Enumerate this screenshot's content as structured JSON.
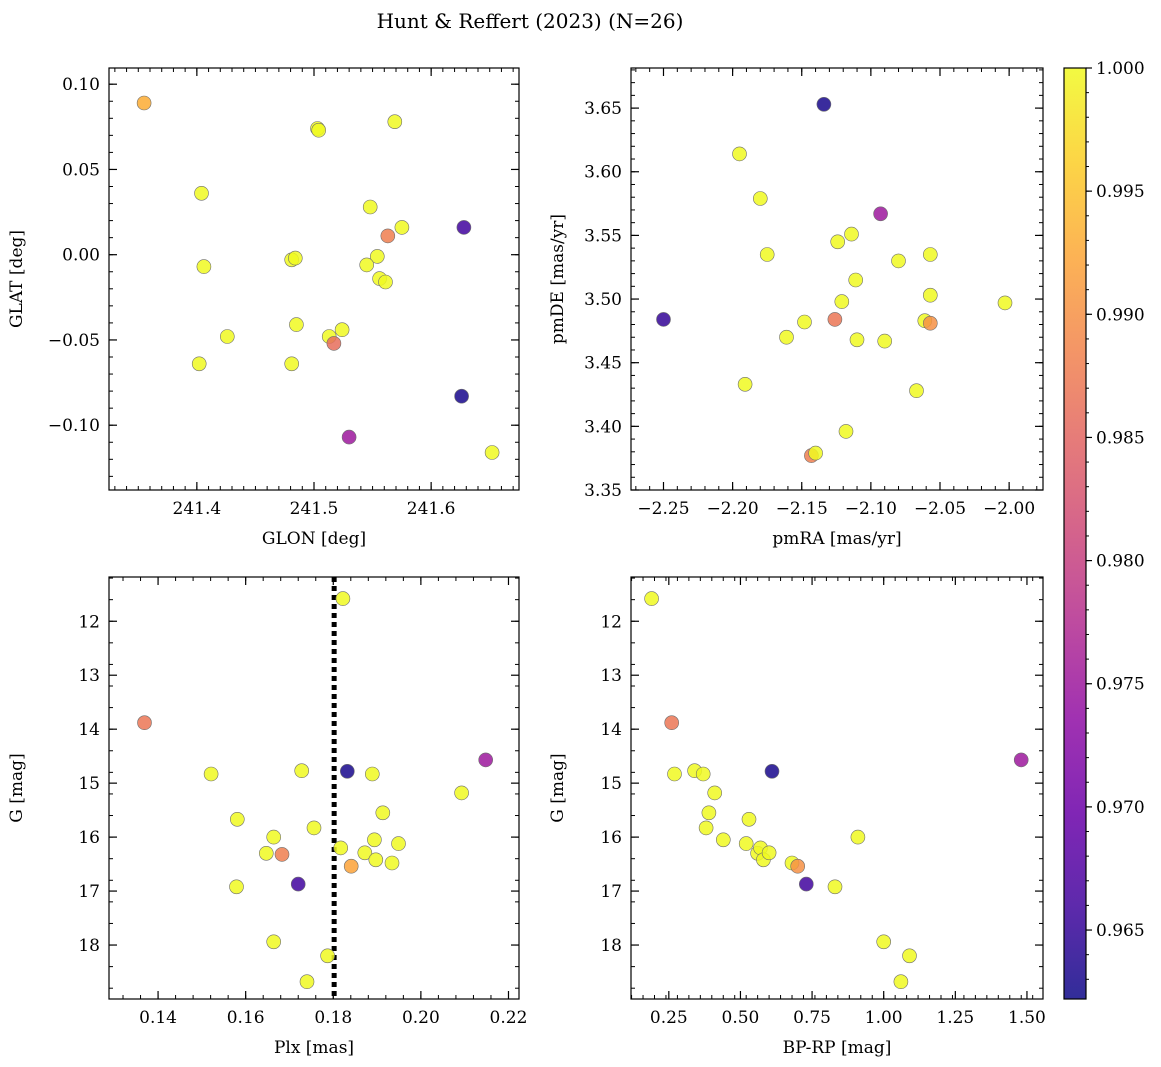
{
  "figure": {
    "title": "Hunt & Reffert (2023) (N=26)"
  },
  "colorbar": {
    "colormap": "plasma",
    "range": [
      0.9622,
      1.0
    ],
    "ticks": [
      0.965,
      0.97,
      0.975,
      0.98,
      0.985,
      0.99,
      0.995,
      1.0
    ],
    "tick_labels": [
      "0.965",
      "0.970",
      "0.975",
      "0.980",
      "0.985",
      "0.990",
      "0.995",
      "1.000"
    ]
  },
  "chart_data": [
    {
      "type": "scatter",
      "xlabel": "GLON [deg]",
      "ylabel": "GLAT [deg]",
      "xlim": [
        241.325,
        241.675
      ],
      "ylim": [
        -0.138,
        0.1095
      ],
      "xticks": [
        241.4,
        241.5,
        241.6
      ],
      "xtick_labels": [
        "241.4",
        "241.5",
        "241.6"
      ],
      "yticks": [
        0.1,
        0.05,
        0.0,
        -0.05,
        -0.1
      ],
      "ytick_labels": [
        "0.10",
        "0.05",
        "0.00",
        "−0.05",
        "−0.10"
      ],
      "points": [
        {
          "x": 241.355,
          "y": 0.089,
          "c": 0.993
        },
        {
          "x": 241.404,
          "y": 0.036,
          "c": 1.0
        },
        {
          "x": 241.406,
          "y": -0.007,
          "c": 1.0
        },
        {
          "x": 241.402,
          "y": -0.064,
          "c": 1.0
        },
        {
          "x": 241.426,
          "y": -0.048,
          "c": 1.0
        },
        {
          "x": 241.481,
          "y": -0.003,
          "c": 1.0
        },
        {
          "x": 241.484,
          "y": -0.002,
          "c": 1.0
        },
        {
          "x": 241.485,
          "y": -0.041,
          "c": 1.0
        },
        {
          "x": 241.481,
          "y": -0.064,
          "c": 1.0
        },
        {
          "x": 241.503,
          "y": 0.074,
          "c": 1.0
        },
        {
          "x": 241.504,
          "y": 0.073,
          "c": 1.0
        },
        {
          "x": 241.569,
          "y": 0.078,
          "c": 1.0
        },
        {
          "x": 241.548,
          "y": 0.028,
          "c": 1.0
        },
        {
          "x": 241.575,
          "y": 0.016,
          "c": 1.0
        },
        {
          "x": 241.563,
          "y": 0.011,
          "c": 0.988
        },
        {
          "x": 241.554,
          "y": -0.001,
          "c": 1.0
        },
        {
          "x": 241.545,
          "y": -0.006,
          "c": 1.0
        },
        {
          "x": 241.556,
          "y": -0.014,
          "c": 1.0
        },
        {
          "x": 241.561,
          "y": -0.016,
          "c": 1.0
        },
        {
          "x": 241.513,
          "y": -0.048,
          "c": 1.0
        },
        {
          "x": 241.524,
          "y": -0.044,
          "c": 1.0
        },
        {
          "x": 241.517,
          "y": -0.052,
          "c": 0.986
        },
        {
          "x": 241.53,
          "y": -0.107,
          "c": 0.975
        },
        {
          "x": 241.628,
          "y": 0.016,
          "c": 0.966
        },
        {
          "x": 241.626,
          "y": -0.083,
          "c": 0.963
        },
        {
          "x": 241.652,
          "y": -0.116,
          "c": 1.0
        }
      ]
    },
    {
      "type": "scatter",
      "xlabel": "pmRA [mas/yr]",
      "ylabel": "pmDE [mas/yr]",
      "xlim": [
        -2.2735,
        -1.9755
      ],
      "ylim": [
        3.35,
        3.6815
      ],
      "xticks": [
        -2.25,
        -2.2,
        -2.15,
        -2.1,
        -2.05,
        -2.0
      ],
      "xtick_labels": [
        "−2.25",
        "−2.20",
        "−2.15",
        "−2.10",
        "−2.05",
        "−2.00"
      ],
      "yticks": [
        3.35,
        3.4,
        3.45,
        3.5,
        3.55,
        3.6,
        3.65
      ],
      "ytick_labels": [
        "3.35",
        "3.40",
        "3.45",
        "3.50",
        "3.55",
        "3.60",
        "3.65"
      ],
      "points": [
        {
          "x": -2.25,
          "y": 3.484,
          "c": 0.965
        },
        {
          "x": -2.195,
          "y": 3.614,
          "c": 1.0
        },
        {
          "x": -2.191,
          "y": 3.433,
          "c": 1.0
        },
        {
          "x": -2.18,
          "y": 3.579,
          "c": 1.0
        },
        {
          "x": -2.175,
          "y": 3.535,
          "c": 1.0
        },
        {
          "x": -2.161,
          "y": 3.47,
          "c": 1.0
        },
        {
          "x": -2.148,
          "y": 3.482,
          "c": 1.0
        },
        {
          "x": -2.143,
          "y": 3.377,
          "c": 0.988
        },
        {
          "x": -2.14,
          "y": 3.379,
          "c": 1.0
        },
        {
          "x": -2.134,
          "y": 3.653,
          "c": 0.963
        },
        {
          "x": -2.126,
          "y": 3.484,
          "c": 0.987
        },
        {
          "x": -2.124,
          "y": 3.545,
          "c": 1.0
        },
        {
          "x": -2.121,
          "y": 3.498,
          "c": 1.0
        },
        {
          "x": -2.118,
          "y": 3.396,
          "c": 1.0
        },
        {
          "x": -2.114,
          "y": 3.551,
          "c": 1.0
        },
        {
          "x": -2.111,
          "y": 3.515,
          "c": 1.0
        },
        {
          "x": -2.11,
          "y": 3.468,
          "c": 1.0
        },
        {
          "x": -2.093,
          "y": 3.567,
          "c": 0.975
        },
        {
          "x": -2.09,
          "y": 3.467,
          "c": 1.0
        },
        {
          "x": -2.08,
          "y": 3.53,
          "c": 1.0
        },
        {
          "x": -2.067,
          "y": 3.428,
          "c": 1.0
        },
        {
          "x": -2.061,
          "y": 3.483,
          "c": 1.0
        },
        {
          "x": -2.057,
          "y": 3.481,
          "c": 0.99
        },
        {
          "x": -2.057,
          "y": 3.535,
          "c": 1.0
        },
        {
          "x": -2.057,
          "y": 3.503,
          "c": 1.0
        },
        {
          "x": -2.003,
          "y": 3.497,
          "c": 1.0
        }
      ]
    },
    {
      "type": "scatter",
      "xlabel": "Plx [mas]",
      "ylabel": "G [mag]",
      "xlim": [
        0.1288,
        0.2224
      ],
      "ylim": [
        19.0,
        11.18
      ],
      "y_inverted": true,
      "reference_line": {
        "axis": "x",
        "value": 0.1802,
        "style": "dotted"
      },
      "xticks": [
        0.14,
        0.16,
        0.18,
        0.2,
        0.22
      ],
      "xtick_labels": [
        "0.14",
        "0.16",
        "0.18",
        "0.20",
        "0.22"
      ],
      "yticks": [
        12,
        13,
        14,
        15,
        16,
        17,
        18
      ],
      "ytick_labels": [
        "12",
        "13",
        "14",
        "15",
        "16",
        "17",
        "18"
      ],
      "points": [
        {
          "x": 0.1369,
          "y": 13.88,
          "c": 0.987
        },
        {
          "x": 0.1521,
          "y": 14.83,
          "c": 1.0
        },
        {
          "x": 0.1581,
          "y": 15.67,
          "c": 1.0
        },
        {
          "x": 0.1579,
          "y": 16.92,
          "c": 1.0
        },
        {
          "x": 0.1647,
          "y": 16.3,
          "c": 1.0
        },
        {
          "x": 0.1664,
          "y": 16.0,
          "c": 1.0
        },
        {
          "x": 0.1664,
          "y": 17.94,
          "c": 1.0
        },
        {
          "x": 0.1683,
          "y": 16.32,
          "c": 0.988
        },
        {
          "x": 0.172,
          "y": 16.87,
          "c": 0.966
        },
        {
          "x": 0.1728,
          "y": 14.77,
          "c": 1.0
        },
        {
          "x": 0.174,
          "y": 18.68,
          "c": 1.0
        },
        {
          "x": 0.1756,
          "y": 15.83,
          "c": 1.0
        },
        {
          "x": 0.1787,
          "y": 18.2,
          "c": 1.0
        },
        {
          "x": 0.1817,
          "y": 16.2,
          "c": 1.0
        },
        {
          "x": 0.1822,
          "y": 11.58,
          "c": 1.0
        },
        {
          "x": 0.1832,
          "y": 14.78,
          "c": 0.963
        },
        {
          "x": 0.1841,
          "y": 16.54,
          "c": 0.992
        },
        {
          "x": 0.1872,
          "y": 16.29,
          "c": 1.0
        },
        {
          "x": 0.1889,
          "y": 14.83,
          "c": 1.0
        },
        {
          "x": 0.1894,
          "y": 16.05,
          "c": 1.0
        },
        {
          "x": 0.1897,
          "y": 16.42,
          "c": 1.0
        },
        {
          "x": 0.1913,
          "y": 15.55,
          "c": 1.0
        },
        {
          "x": 0.1934,
          "y": 16.48,
          "c": 1.0
        },
        {
          "x": 0.1949,
          "y": 16.12,
          "c": 1.0
        },
        {
          "x": 0.2093,
          "y": 15.18,
          "c": 1.0
        },
        {
          "x": 0.2148,
          "y": 14.57,
          "c": 0.975
        }
      ]
    },
    {
      "type": "scatter",
      "xlabel": "BP-RP [mag]",
      "ylabel": "G [mag]",
      "xlim": [
        0.118,
        1.556
      ],
      "ylim": [
        19.0,
        11.18
      ],
      "y_inverted": true,
      "xticks": [
        0.25,
        0.5,
        0.75,
        1.0,
        1.25,
        1.5
      ],
      "xtick_labels": [
        "0.25",
        "0.50",
        "0.75",
        "1.00",
        "1.25",
        "1.50"
      ],
      "yticks": [
        12,
        13,
        14,
        15,
        16,
        17,
        18
      ],
      "ytick_labels": [
        "12",
        "13",
        "14",
        "15",
        "16",
        "17",
        "18"
      ],
      "points": [
        {
          "x": 0.19,
          "y": 11.58,
          "c": 1.0
        },
        {
          "x": 0.26,
          "y": 13.88,
          "c": 0.987
        },
        {
          "x": 0.27,
          "y": 14.83,
          "c": 1.0
        },
        {
          "x": 0.34,
          "y": 14.77,
          "c": 1.0
        },
        {
          "x": 0.37,
          "y": 14.83,
          "c": 1.0
        },
        {
          "x": 0.38,
          "y": 15.83,
          "c": 1.0
        },
        {
          "x": 0.39,
          "y": 15.55,
          "c": 1.0
        },
        {
          "x": 0.41,
          "y": 15.18,
          "c": 1.0
        },
        {
          "x": 0.44,
          "y": 16.05,
          "c": 1.0
        },
        {
          "x": 0.52,
          "y": 16.12,
          "c": 1.0
        },
        {
          "x": 0.53,
          "y": 15.67,
          "c": 1.0
        },
        {
          "x": 0.56,
          "y": 16.3,
          "c": 1.0
        },
        {
          "x": 0.57,
          "y": 16.2,
          "c": 1.0
        },
        {
          "x": 0.58,
          "y": 16.42,
          "c": 1.0
        },
        {
          "x": 0.6,
          "y": 16.29,
          "c": 1.0
        },
        {
          "x": 0.61,
          "y": 14.78,
          "c": 0.963
        },
        {
          "x": 0.68,
          "y": 16.48,
          "c": 1.0
        },
        {
          "x": 0.7,
          "y": 16.54,
          "c": 0.99
        },
        {
          "x": 0.73,
          "y": 16.87,
          "c": 0.966
        },
        {
          "x": 0.83,
          "y": 16.92,
          "c": 1.0
        },
        {
          "x": 0.91,
          "y": 16.0,
          "c": 1.0
        },
        {
          "x": 1.0,
          "y": 17.94,
          "c": 1.0
        },
        {
          "x": 1.06,
          "y": 18.68,
          "c": 1.0
        },
        {
          "x": 1.09,
          "y": 18.2,
          "c": 1.0
        },
        {
          "x": 1.48,
          "y": 14.57,
          "c": 0.975
        }
      ]
    }
  ]
}
